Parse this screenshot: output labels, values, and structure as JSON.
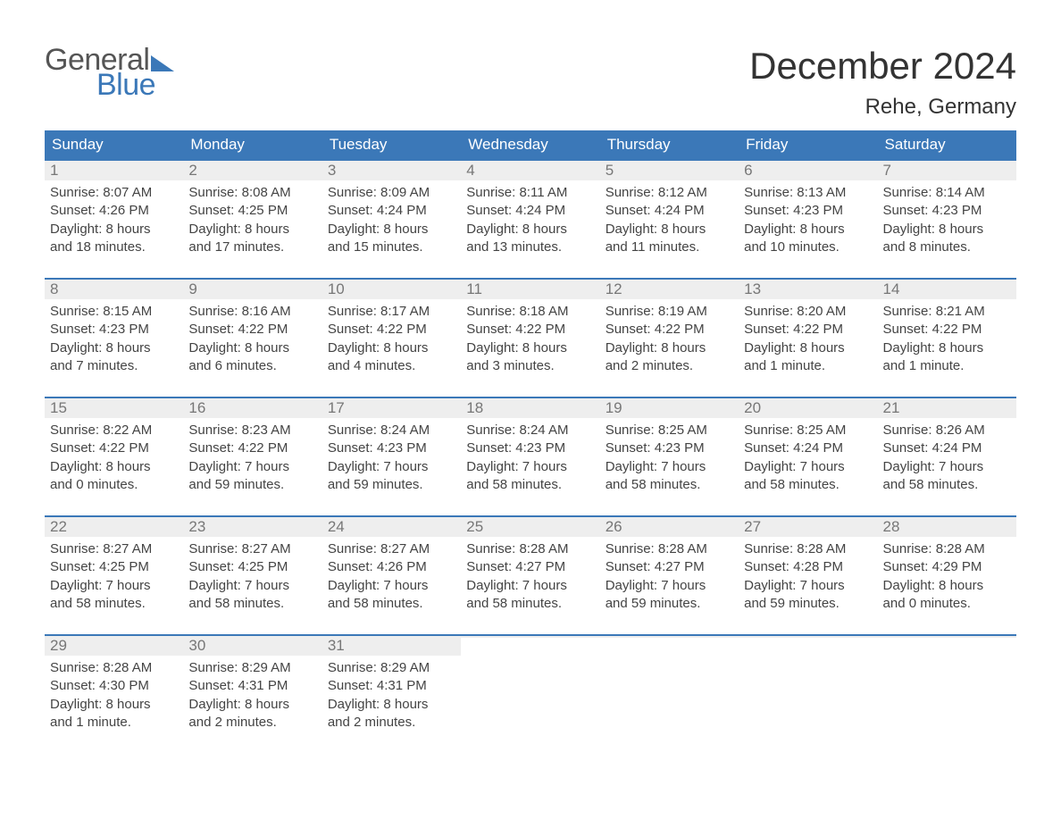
{
  "brand": {
    "general": "General",
    "blue": "Blue"
  },
  "header": {
    "month_title": "December 2024",
    "location": "Rehe, Germany"
  },
  "styling": {
    "header_bg": "#3b78b8",
    "header_text": "#ffffff",
    "daynum_bg": "#eeeeee",
    "daynum_text": "#777777",
    "body_text": "#444444",
    "week_border": "#3b78b8",
    "page_bg": "#ffffff",
    "title_fontsize": 42,
    "location_fontsize": 24,
    "weekday_fontsize": 17,
    "body_fontsize": 15,
    "columns": 7
  },
  "weekdays": [
    "Sunday",
    "Monday",
    "Tuesday",
    "Wednesday",
    "Thursday",
    "Friday",
    "Saturday"
  ],
  "weeks": [
    [
      {
        "day": "1",
        "sunrise": "Sunrise: 8:07 AM",
        "sunset": "Sunset: 4:26 PM",
        "daylight1": "Daylight: 8 hours",
        "daylight2": "and 18 minutes."
      },
      {
        "day": "2",
        "sunrise": "Sunrise: 8:08 AM",
        "sunset": "Sunset: 4:25 PM",
        "daylight1": "Daylight: 8 hours",
        "daylight2": "and 17 minutes."
      },
      {
        "day": "3",
        "sunrise": "Sunrise: 8:09 AM",
        "sunset": "Sunset: 4:24 PM",
        "daylight1": "Daylight: 8 hours",
        "daylight2": "and 15 minutes."
      },
      {
        "day": "4",
        "sunrise": "Sunrise: 8:11 AM",
        "sunset": "Sunset: 4:24 PM",
        "daylight1": "Daylight: 8 hours",
        "daylight2": "and 13 minutes."
      },
      {
        "day": "5",
        "sunrise": "Sunrise: 8:12 AM",
        "sunset": "Sunset: 4:24 PM",
        "daylight1": "Daylight: 8 hours",
        "daylight2": "and 11 minutes."
      },
      {
        "day": "6",
        "sunrise": "Sunrise: 8:13 AM",
        "sunset": "Sunset: 4:23 PM",
        "daylight1": "Daylight: 8 hours",
        "daylight2": "and 10 minutes."
      },
      {
        "day": "7",
        "sunrise": "Sunrise: 8:14 AM",
        "sunset": "Sunset: 4:23 PM",
        "daylight1": "Daylight: 8 hours",
        "daylight2": "and 8 minutes."
      }
    ],
    [
      {
        "day": "8",
        "sunrise": "Sunrise: 8:15 AM",
        "sunset": "Sunset: 4:23 PM",
        "daylight1": "Daylight: 8 hours",
        "daylight2": "and 7 minutes."
      },
      {
        "day": "9",
        "sunrise": "Sunrise: 8:16 AM",
        "sunset": "Sunset: 4:22 PM",
        "daylight1": "Daylight: 8 hours",
        "daylight2": "and 6 minutes."
      },
      {
        "day": "10",
        "sunrise": "Sunrise: 8:17 AM",
        "sunset": "Sunset: 4:22 PM",
        "daylight1": "Daylight: 8 hours",
        "daylight2": "and 4 minutes."
      },
      {
        "day": "11",
        "sunrise": "Sunrise: 8:18 AM",
        "sunset": "Sunset: 4:22 PM",
        "daylight1": "Daylight: 8 hours",
        "daylight2": "and 3 minutes."
      },
      {
        "day": "12",
        "sunrise": "Sunrise: 8:19 AM",
        "sunset": "Sunset: 4:22 PM",
        "daylight1": "Daylight: 8 hours",
        "daylight2": "and 2 minutes."
      },
      {
        "day": "13",
        "sunrise": "Sunrise: 8:20 AM",
        "sunset": "Sunset: 4:22 PM",
        "daylight1": "Daylight: 8 hours",
        "daylight2": "and 1 minute."
      },
      {
        "day": "14",
        "sunrise": "Sunrise: 8:21 AM",
        "sunset": "Sunset: 4:22 PM",
        "daylight1": "Daylight: 8 hours",
        "daylight2": "and 1 minute."
      }
    ],
    [
      {
        "day": "15",
        "sunrise": "Sunrise: 8:22 AM",
        "sunset": "Sunset: 4:22 PM",
        "daylight1": "Daylight: 8 hours",
        "daylight2": "and 0 minutes."
      },
      {
        "day": "16",
        "sunrise": "Sunrise: 8:23 AM",
        "sunset": "Sunset: 4:22 PM",
        "daylight1": "Daylight: 7 hours",
        "daylight2": "and 59 minutes."
      },
      {
        "day": "17",
        "sunrise": "Sunrise: 8:24 AM",
        "sunset": "Sunset: 4:23 PM",
        "daylight1": "Daylight: 7 hours",
        "daylight2": "and 59 minutes."
      },
      {
        "day": "18",
        "sunrise": "Sunrise: 8:24 AM",
        "sunset": "Sunset: 4:23 PM",
        "daylight1": "Daylight: 7 hours",
        "daylight2": "and 58 minutes."
      },
      {
        "day": "19",
        "sunrise": "Sunrise: 8:25 AM",
        "sunset": "Sunset: 4:23 PM",
        "daylight1": "Daylight: 7 hours",
        "daylight2": "and 58 minutes."
      },
      {
        "day": "20",
        "sunrise": "Sunrise: 8:25 AM",
        "sunset": "Sunset: 4:24 PM",
        "daylight1": "Daylight: 7 hours",
        "daylight2": "and 58 minutes."
      },
      {
        "day": "21",
        "sunrise": "Sunrise: 8:26 AM",
        "sunset": "Sunset: 4:24 PM",
        "daylight1": "Daylight: 7 hours",
        "daylight2": "and 58 minutes."
      }
    ],
    [
      {
        "day": "22",
        "sunrise": "Sunrise: 8:27 AM",
        "sunset": "Sunset: 4:25 PM",
        "daylight1": "Daylight: 7 hours",
        "daylight2": "and 58 minutes."
      },
      {
        "day": "23",
        "sunrise": "Sunrise: 8:27 AM",
        "sunset": "Sunset: 4:25 PM",
        "daylight1": "Daylight: 7 hours",
        "daylight2": "and 58 minutes."
      },
      {
        "day": "24",
        "sunrise": "Sunrise: 8:27 AM",
        "sunset": "Sunset: 4:26 PM",
        "daylight1": "Daylight: 7 hours",
        "daylight2": "and 58 minutes."
      },
      {
        "day": "25",
        "sunrise": "Sunrise: 8:28 AM",
        "sunset": "Sunset: 4:27 PM",
        "daylight1": "Daylight: 7 hours",
        "daylight2": "and 58 minutes."
      },
      {
        "day": "26",
        "sunrise": "Sunrise: 8:28 AM",
        "sunset": "Sunset: 4:27 PM",
        "daylight1": "Daylight: 7 hours",
        "daylight2": "and 59 minutes."
      },
      {
        "day": "27",
        "sunrise": "Sunrise: 8:28 AM",
        "sunset": "Sunset: 4:28 PM",
        "daylight1": "Daylight: 7 hours",
        "daylight2": "and 59 minutes."
      },
      {
        "day": "28",
        "sunrise": "Sunrise: 8:28 AM",
        "sunset": "Sunset: 4:29 PM",
        "daylight1": "Daylight: 8 hours",
        "daylight2": "and 0 minutes."
      }
    ],
    [
      {
        "day": "29",
        "sunrise": "Sunrise: 8:28 AM",
        "sunset": "Sunset: 4:30 PM",
        "daylight1": "Daylight: 8 hours",
        "daylight2": "and 1 minute."
      },
      {
        "day": "30",
        "sunrise": "Sunrise: 8:29 AM",
        "sunset": "Sunset: 4:31 PM",
        "daylight1": "Daylight: 8 hours",
        "daylight2": "and 2 minutes."
      },
      {
        "day": "31",
        "sunrise": "Sunrise: 8:29 AM",
        "sunset": "Sunset: 4:31 PM",
        "daylight1": "Daylight: 8 hours",
        "daylight2": "and 2 minutes."
      },
      {
        "empty": true,
        "day": "",
        "sunrise": "",
        "sunset": "",
        "daylight1": "",
        "daylight2": ""
      },
      {
        "empty": true,
        "day": "",
        "sunrise": "",
        "sunset": "",
        "daylight1": "",
        "daylight2": ""
      },
      {
        "empty": true,
        "day": "",
        "sunrise": "",
        "sunset": "",
        "daylight1": "",
        "daylight2": ""
      },
      {
        "empty": true,
        "day": "",
        "sunrise": "",
        "sunset": "",
        "daylight1": "",
        "daylight2": ""
      }
    ]
  ]
}
